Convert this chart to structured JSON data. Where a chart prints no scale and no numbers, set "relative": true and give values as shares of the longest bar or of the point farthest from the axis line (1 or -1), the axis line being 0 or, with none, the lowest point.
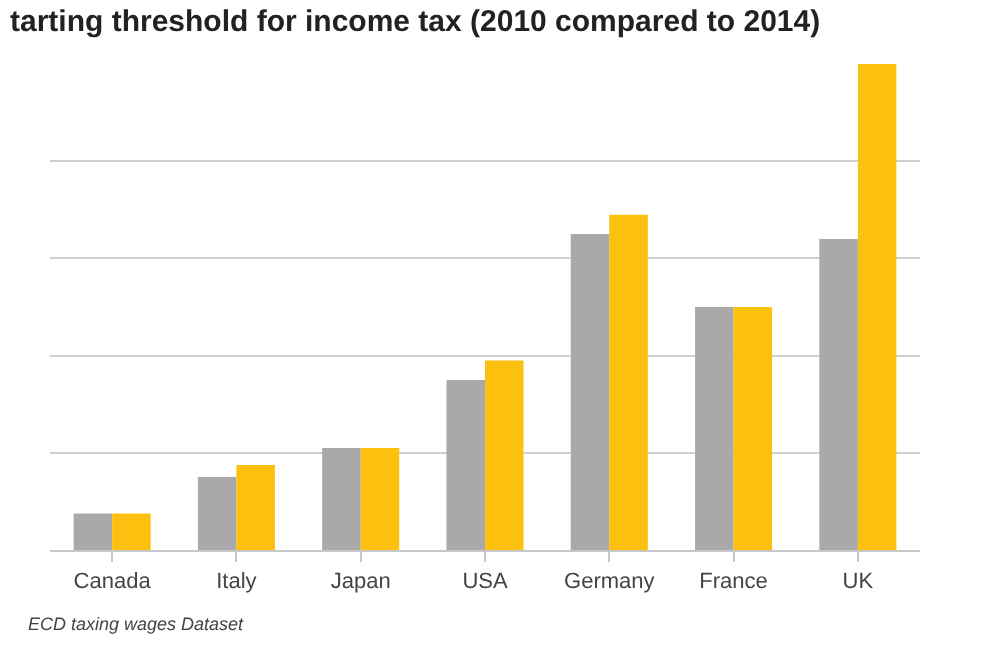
{
  "chart_data": {
    "type": "bar",
    "title": "tarting threshold for income tax (2010 compared to 2014)",
    "relative": true,
    "grid": "y",
    "categories": [
      "Canada",
      "Italy",
      "Japan",
      "USA",
      "Germany",
      "France",
      "UK"
    ],
    "series": [
      {
        "color": "#a9a9a9",
        "values": [
          0.075,
          0.15,
          0.21,
          0.35,
          0.65,
          0.5,
          0.64
        ]
      },
      {
        "color": "#fcc10f",
        "values": [
          0.075,
          0.175,
          0.21,
          0.39,
          0.69,
          0.5,
          1
        ]
      }
    ],
    "annotations": [
      "ECD taxing wages Dataset"
    ]
  }
}
